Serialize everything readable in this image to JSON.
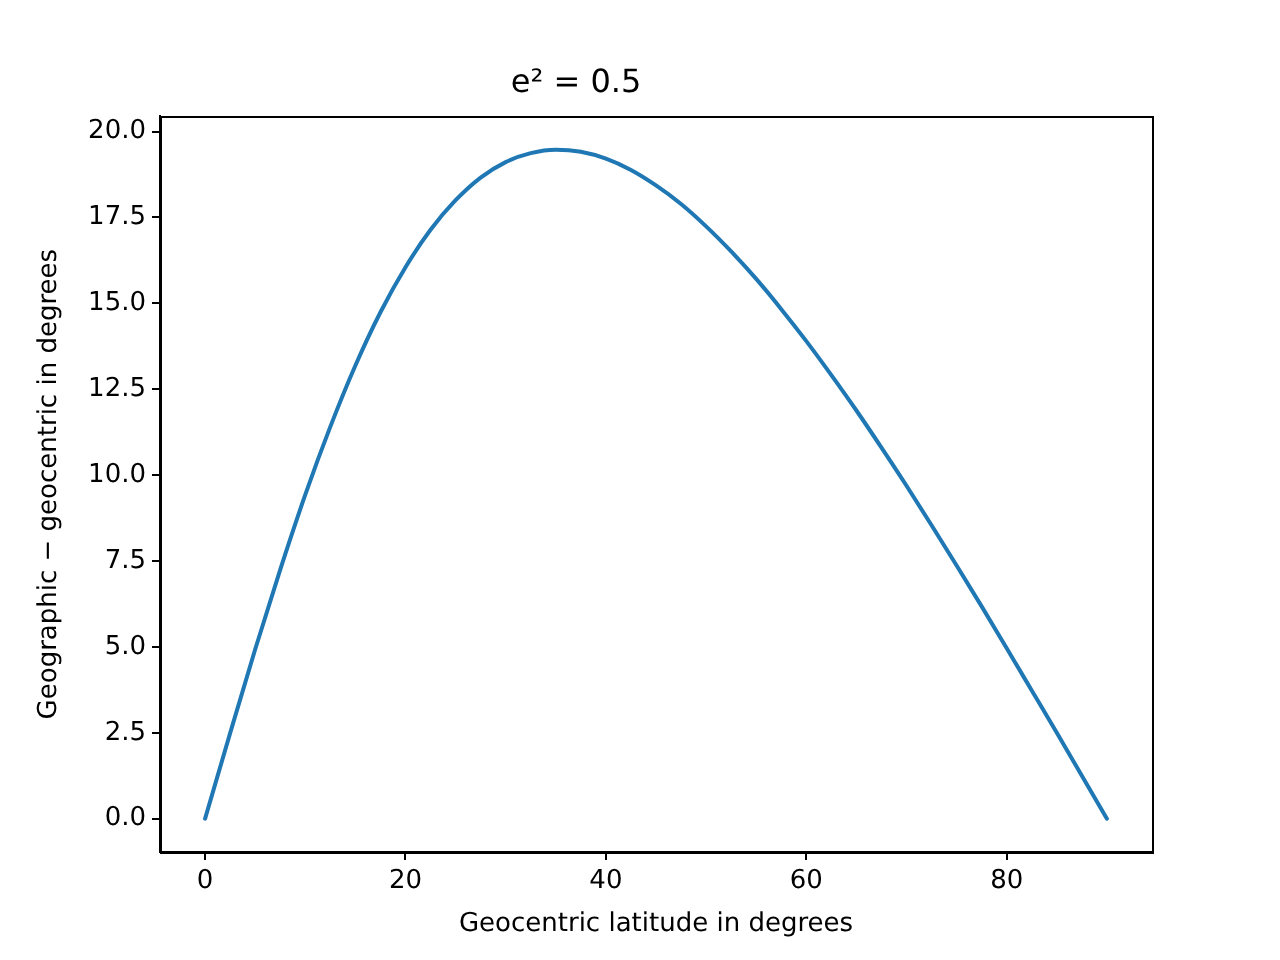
{
  "chart_data": {
    "type": "line",
    "title": "e² = 0.5",
    "xlabel": "Geocentric latitude in degrees",
    "ylabel": "Geographic − geocentric in degrees",
    "x": [
      0,
      2.5,
      5,
      7.5,
      10,
      12.5,
      15,
      17.5,
      20,
      22.5,
      25,
      27.5,
      30,
      32.5,
      35,
      37.5,
      40,
      42.5,
      45,
      47.5,
      50,
      52.5,
      55,
      57.5,
      60,
      62.5,
      65,
      67.5,
      70,
      72.5,
      75,
      77.5,
      80,
      82.5,
      85,
      87.5,
      90
    ],
    "series": [
      {
        "color": "#1f77b4",
        "values": [
          0,
          2.49,
          4.93,
          7.25,
          9.43,
          11.41,
          13.19,
          14.74,
          16.05,
          17.14,
          18.0,
          18.66,
          19.11,
          19.37,
          19.47,
          19.41,
          19.21,
          18.88,
          18.43,
          17.89,
          17.24,
          16.51,
          15.71,
          14.83,
          13.9,
          12.91,
          11.88,
          10.8,
          9.69,
          8.54,
          7.37,
          6.18,
          4.96,
          3.73,
          2.5,
          1.25,
          0
        ]
      }
    ],
    "xlim": [
      -4.5,
      94.5
    ],
    "xticks": [
      0,
      20,
      40,
      60,
      80
    ],
    "ylim": [
      -0.97,
      20.44
    ],
    "yticks": [
      {
        "value": 0,
        "label": "0.0"
      },
      {
        "value": 2.5,
        "label": "2.5"
      },
      {
        "value": 5,
        "label": "5.0"
      },
      {
        "value": 7.5,
        "label": "7.5"
      },
      {
        "value": 10,
        "label": "10.0"
      },
      {
        "value": 12.5,
        "label": "12.5"
      },
      {
        "value": 15,
        "label": "15.0"
      },
      {
        "value": 17.5,
        "label": "17.5"
      },
      {
        "value": 20,
        "label": "20.0"
      }
    ]
  }
}
